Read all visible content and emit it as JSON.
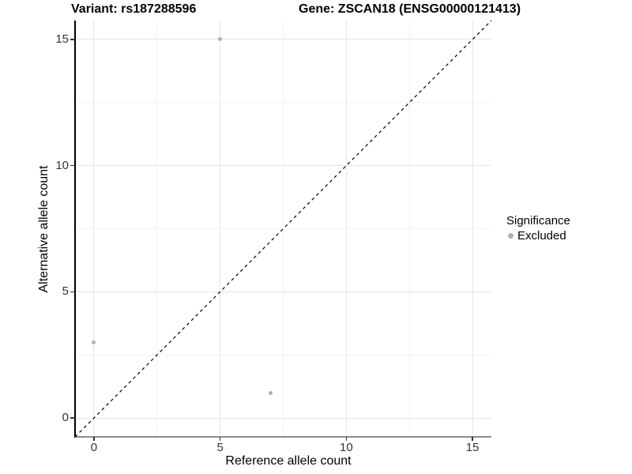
{
  "titles": {
    "left": "Variant: rs187288596",
    "right": "Gene: ZSCAN18 (ENSG00000121413)"
  },
  "legend": {
    "title": "Significance",
    "items": [
      {
        "label": "Excluded",
        "color": "#b2b2b2"
      }
    ]
  },
  "chart_data": {
    "type": "scatter",
    "title": "Variant: rs187288596 / Gene: ZSCAN18 (ENSG00000121413)",
    "xlabel": "Reference allele count",
    "ylabel": "Alternative allele count",
    "xlim": [
      -0.75,
      15.75
    ],
    "ylim": [
      -0.75,
      15.75
    ],
    "x_ticks": [
      0,
      5,
      10,
      15
    ],
    "y_ticks": [
      0,
      5,
      10,
      15
    ],
    "x_minor_ticks": [
      2.5,
      7.5,
      12.5
    ],
    "y_minor_ticks": [
      2.5,
      7.5,
      12.5
    ],
    "grid": "on",
    "legend_position": "right",
    "series": [
      {
        "name": "Excluded",
        "color": "#b2b2b2",
        "points": [
          {
            "x": 0,
            "y": 3
          },
          {
            "x": 5,
            "y": 15
          },
          {
            "x": 7,
            "y": 1
          }
        ]
      }
    ],
    "reference_line": {
      "kind": "identity y=x",
      "style": "dashed",
      "color": "#000000"
    }
  },
  "colors": {
    "background": "#ffffff",
    "grid_major": "#e5e5e5",
    "grid_minor": "#f2f2f2",
    "axis_line_left": "#000000",
    "axis_line_bottom": "#8c8c8c",
    "tick": "#333333",
    "point": "#b2b2b2"
  }
}
